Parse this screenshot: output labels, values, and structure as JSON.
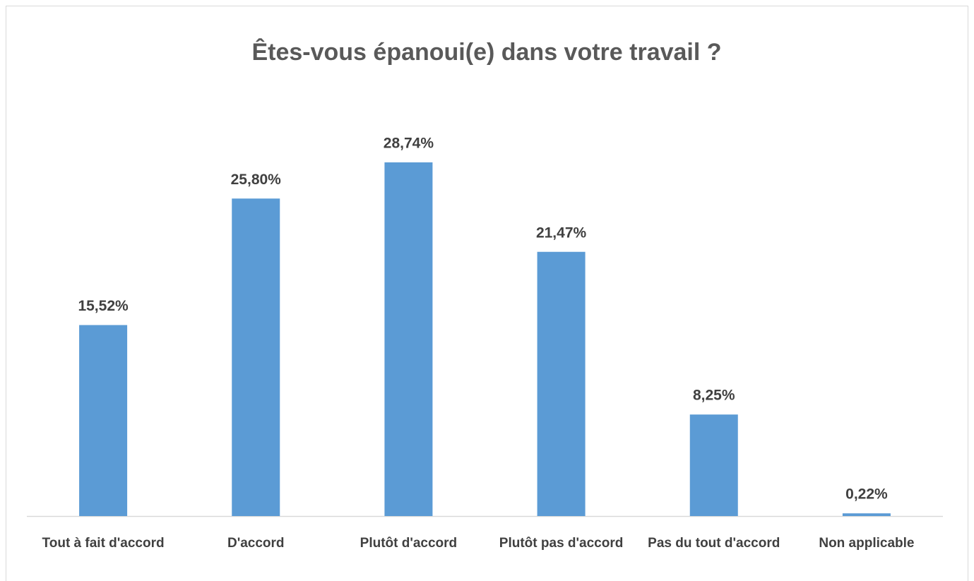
{
  "chart_data": {
    "type": "bar",
    "title": "Êtes-vous épanoui(e) dans votre travail ?",
    "categories": [
      "Tout à fait d'accord",
      "D'accord",
      "Plutôt d'accord",
      "Plutôt pas d'accord",
      "Pas du tout d'accord",
      "Non applicable"
    ],
    "values": [
      15.52,
      25.8,
      28.74,
      21.47,
      8.25,
      0.22
    ],
    "value_labels": [
      "15,52%",
      "25,80%",
      "28,74%",
      "21,47%",
      "8,25%",
      "0,22%"
    ],
    "color": "#5b9bd5"
  }
}
